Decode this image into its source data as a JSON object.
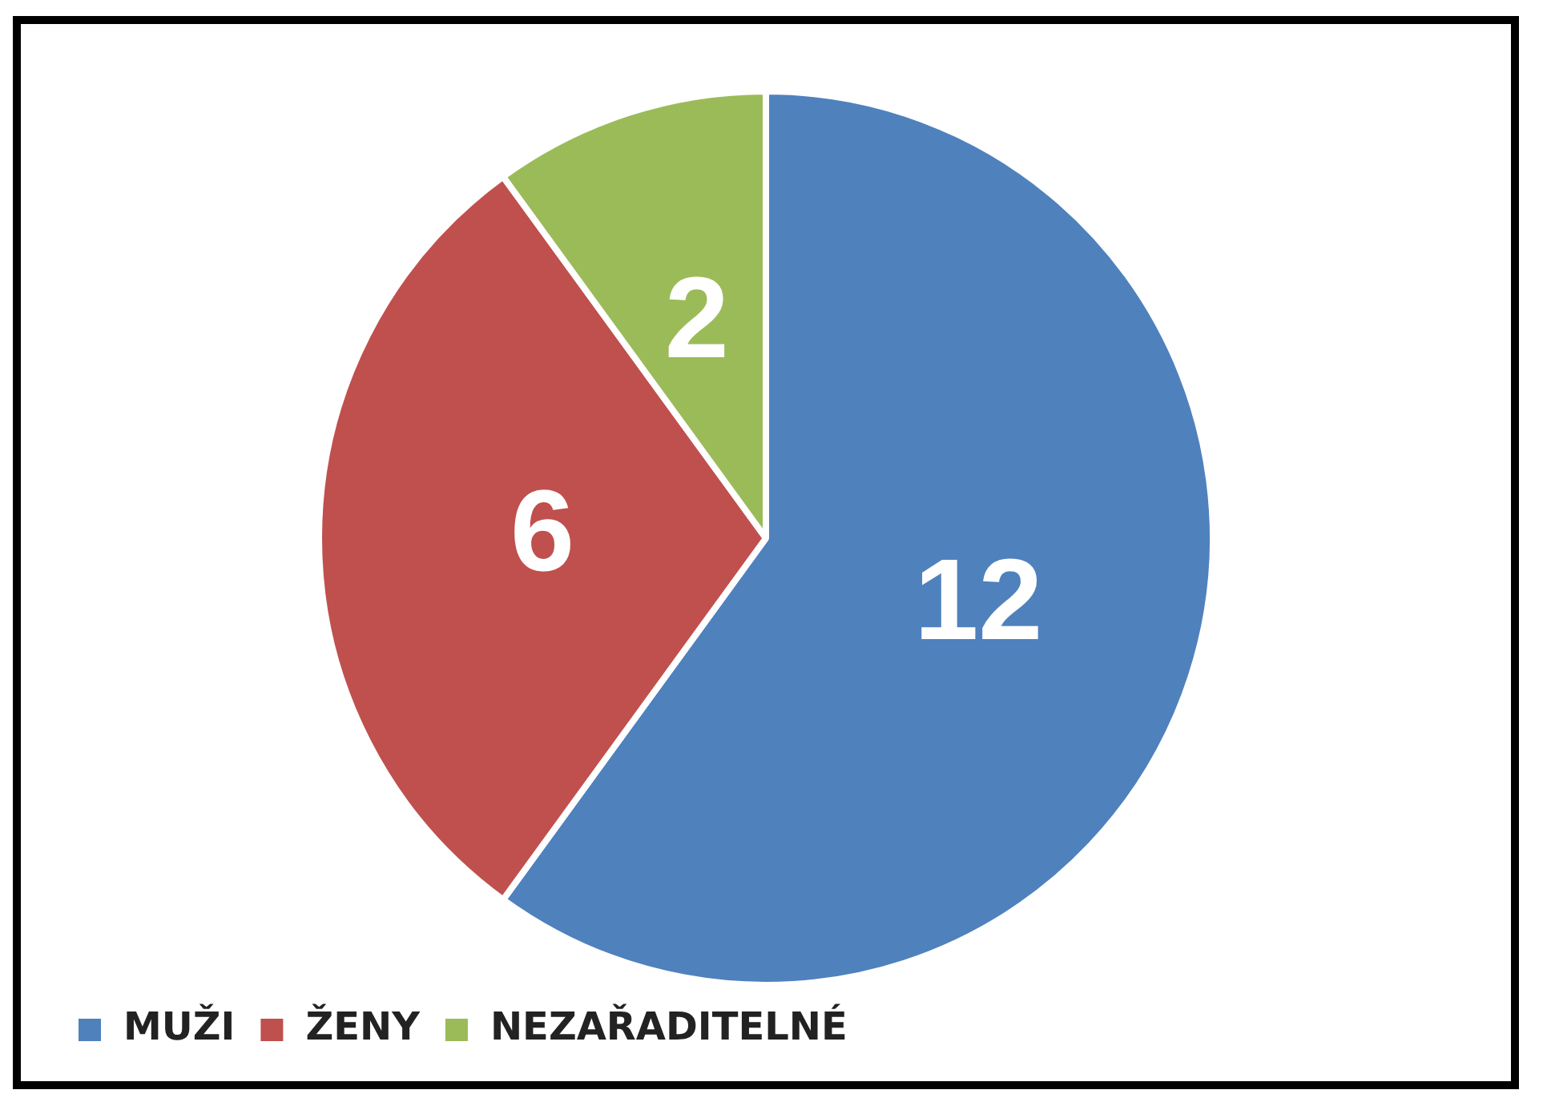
{
  "chart_data": {
    "type": "pie",
    "categories": [
      "MUŽI",
      "ŽENY",
      "NEZAŘADITELNÉ"
    ],
    "values": [
      12,
      6,
      2
    ],
    "colors": [
      "#4f81bd",
      "#c0504d",
      "#9bbb59"
    ],
    "data_labels": true,
    "legend": "bottom left"
  }
}
